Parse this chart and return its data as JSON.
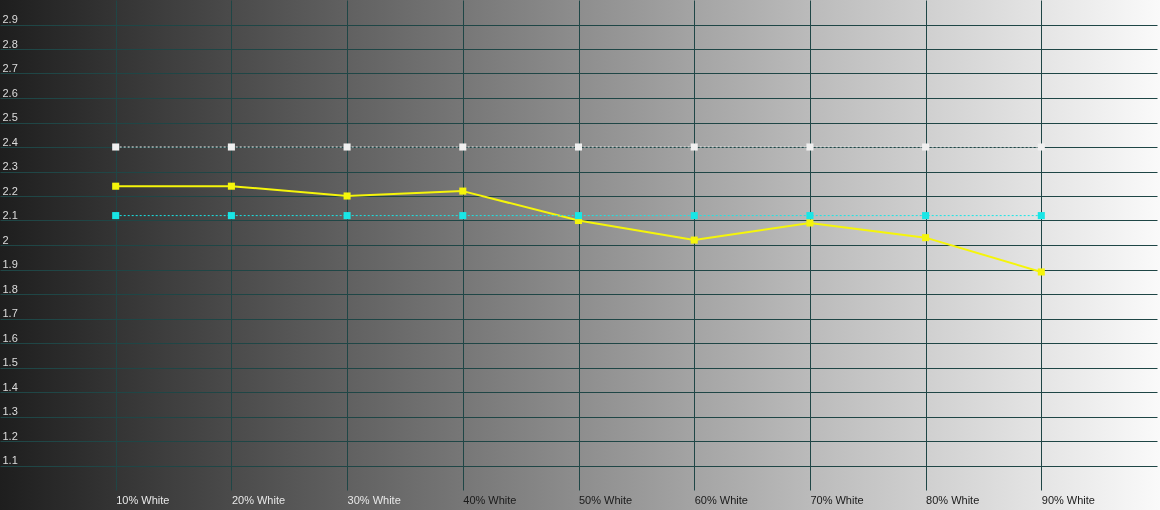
{
  "chart_data": {
    "type": "line",
    "categories": [
      "10% White",
      "20% White",
      "30% White",
      "40% White",
      "50% White",
      "60% White",
      "70% White",
      "80% White",
      "90% White"
    ],
    "series": [
      {
        "color": "#f5f50a",
        "values": [
          2.24,
          2.24,
          2.2,
          2.22,
          2.1,
          2.02,
          2.09,
          2.03,
          1.89
        ],
        "marker": "square",
        "line_style": "solid"
      },
      {
        "color": "#f0f0f0",
        "values": [
          2.4,
          2.4,
          2.4,
          2.4,
          2.4,
          2.4,
          2.4,
          2.4,
          2.4
        ],
        "marker": "square",
        "line_style": "dotted"
      },
      {
        "color": "#19e6e6",
        "values": [
          2.12,
          2.12,
          2.12,
          2.12,
          2.12,
          2.12,
          2.12,
          2.12,
          2.12
        ],
        "marker": "square",
        "line_style": "dotted"
      }
    ],
    "ylim": [
      1.0,
      3.0
    ],
    "yticks": [
      1.1,
      1.2,
      1.3,
      1.4,
      1.5,
      1.6,
      1.7,
      1.8,
      1.9,
      2.0,
      2.1,
      2.2,
      2.3,
      2.4,
      2.5,
      2.6,
      2.7,
      2.8,
      2.9
    ],
    "grid": true
  }
}
